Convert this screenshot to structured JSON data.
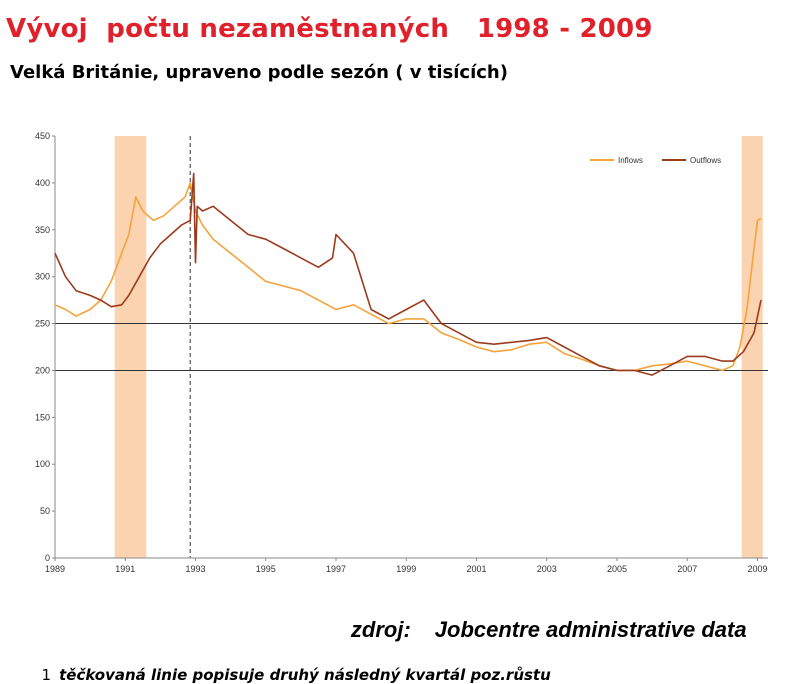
{
  "header": {
    "title": "Vývoj  počtu nezaměstnaných   1998 - 2009",
    "subtitle": "Velká Británie, upraveno podle sezón ( v tisících)"
  },
  "source": {
    "label": "zdroj:",
    "value": "Jobcentre administrative data"
  },
  "footnote": {
    "marker": "1",
    "text": "těčkovaná linie popisuje druhý následný kvartál poz.růstu"
  },
  "colors": {
    "inflows": "#f5a33a",
    "outflows": "#9c3b1c",
    "recession_band": "#fbd3b0",
    "reference_line": "#333333",
    "dashed_line": "#555555",
    "axis": "#888888"
  },
  "chart_data": {
    "type": "line",
    "x_range": [
      1989,
      2009.3
    ],
    "ylim": [
      0,
      450
    ],
    "y_ticks": [
      0,
      50,
      100,
      150,
      200,
      250,
      300,
      350,
      400,
      450
    ],
    "x_ticks": [
      "1989",
      "1991",
      "1993",
      "1995",
      "1997",
      "1999",
      "2001",
      "2003",
      "2005",
      "2007",
      "2009"
    ],
    "legend": {
      "position": "top-right",
      "entries": [
        "Inflows",
        "Outflows"
      ]
    },
    "reference_lines": [
      200,
      250
    ],
    "dashed_vertical_x": 1992.85,
    "recession_bands": [
      [
        1990.7,
        1991.6
      ],
      [
        2008.55,
        2009.15
      ]
    ],
    "series": [
      {
        "name": "Inflows",
        "x": [
          1989.0,
          1989.3,
          1989.6,
          1990.0,
          1990.3,
          1990.6,
          1990.9,
          1991.1,
          1991.3,
          1991.5,
          1991.8,
          1992.1,
          1992.4,
          1992.7,
          1992.85,
          1993.0,
          1993.2,
          1993.5,
          1994.0,
          1994.5,
          1995.0,
          1995.5,
          1996.0,
          1996.5,
          1997.0,
          1997.5,
          1998.0,
          1998.5,
          1999.0,
          1999.5,
          2000.0,
          2000.5,
          2001.0,
          2001.5,
          2002.0,
          2002.5,
          2003.0,
          2003.5,
          2004.0,
          2004.5,
          2005.0,
          2005.5,
          2006.0,
          2006.5,
          2007.0,
          2007.5,
          2008.0,
          2008.3,
          2008.5,
          2008.7,
          2008.9,
          2009.0,
          2009.1
        ],
        "values": [
          270,
          265,
          258,
          265,
          275,
          295,
          325,
          345,
          385,
          370,
          360,
          365,
          375,
          385,
          400,
          370,
          355,
          340,
          325,
          310,
          295,
          290,
          285,
          275,
          265,
          270,
          260,
          250,
          255,
          255,
          240,
          233,
          225,
          220,
          222,
          228,
          230,
          218,
          212,
          205,
          200,
          200,
          205,
          207,
          210,
          205,
          200,
          205,
          225,
          265,
          330,
          360,
          362
        ]
      },
      {
        "name": "Outflows",
        "x": [
          1989.0,
          1989.3,
          1989.6,
          1990.0,
          1990.3,
          1990.6,
          1990.9,
          1991.1,
          1991.4,
          1991.7,
          1992.0,
          1992.3,
          1992.6,
          1992.85,
          1992.95,
          1993.0,
          1993.05,
          1993.2,
          1993.5,
          1994.0,
          1994.5,
          1995.0,
          1995.5,
          1996.0,
          1996.5,
          1996.9,
          1997.0,
          1997.5,
          1998.0,
          1998.5,
          1999.0,
          1999.5,
          2000.0,
          2000.5,
          2001.0,
          2001.5,
          2002.0,
          2002.5,
          2003.0,
          2003.5,
          2004.0,
          2004.5,
          2005.0,
          2005.5,
          2006.0,
          2006.5,
          2007.0,
          2007.5,
          2008.0,
          2008.3,
          2008.6,
          2008.9,
          2009.1
        ],
        "values": [
          325,
          300,
          285,
          280,
          275,
          268,
          270,
          280,
          300,
          320,
          335,
          345,
          355,
          360,
          410,
          315,
          375,
          370,
          375,
          360,
          345,
          340,
          330,
          320,
          310,
          320,
          345,
          325,
          265,
          255,
          265,
          275,
          250,
          240,
          230,
          228,
          230,
          232,
          235,
          225,
          215,
          205,
          200,
          200,
          195,
          205,
          215,
          215,
          210,
          210,
          220,
          240,
          275
        ]
      }
    ]
  }
}
